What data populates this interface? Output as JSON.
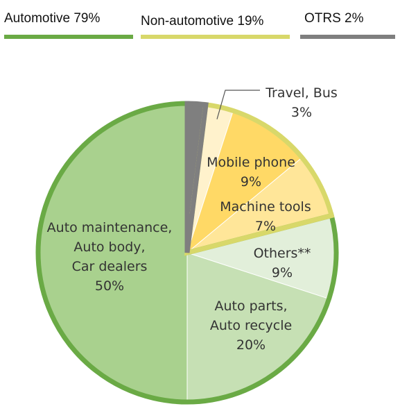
{
  "legend": [
    {
      "label": "Automotive 79%",
      "color": "#6aaa45"
    },
    {
      "label": "Non-automotive 19%",
      "color": "#d8d86a"
    },
    {
      "label": "OTRS 2%",
      "color": "#7f7f7f"
    }
  ],
  "chart_data": {
    "type": "pie",
    "title": "",
    "start": "top",
    "direction": "clockwise",
    "groups": [
      {
        "name": "Automotive",
        "value": 79,
        "color": "#6aaa45"
      },
      {
        "name": "Non-automotive",
        "value": 19,
        "color": "#d8d86a"
      },
      {
        "name": "OTRS",
        "value": 2,
        "color": "#7f7f7f"
      }
    ],
    "slices": [
      {
        "lines": [],
        "value": 2,
        "group": "OTRS",
        "color": "#7f7f7f"
      },
      {
        "lines": [
          "Travel, Bus",
          "3%"
        ],
        "value": 3,
        "group": "Non-automotive",
        "color": "#fff2cc"
      },
      {
        "lines": [
          "Mobile phone",
          "9%"
        ],
        "value": 9,
        "group": "Non-automotive",
        "color": "#ffd966"
      },
      {
        "lines": [
          "Machine tools",
          "7%"
        ],
        "value": 7,
        "group": "Non-automotive",
        "color": "#ffe699"
      },
      {
        "lines": [
          "Others**",
          "9%"
        ],
        "value": 9,
        "group": "Automotive",
        "color": "#e2efda"
      },
      {
        "lines": [
          "Auto parts,",
          "Auto recycle",
          "20%"
        ],
        "value": 20,
        "group": "Automotive",
        "color": "#c6e0b4"
      },
      {
        "lines": [
          "Auto maintenance,",
          "Auto body,",
          "Car dealers",
          "50%"
        ],
        "value": 50,
        "group": "Automotive",
        "color": "#a9d18e"
      }
    ]
  }
}
